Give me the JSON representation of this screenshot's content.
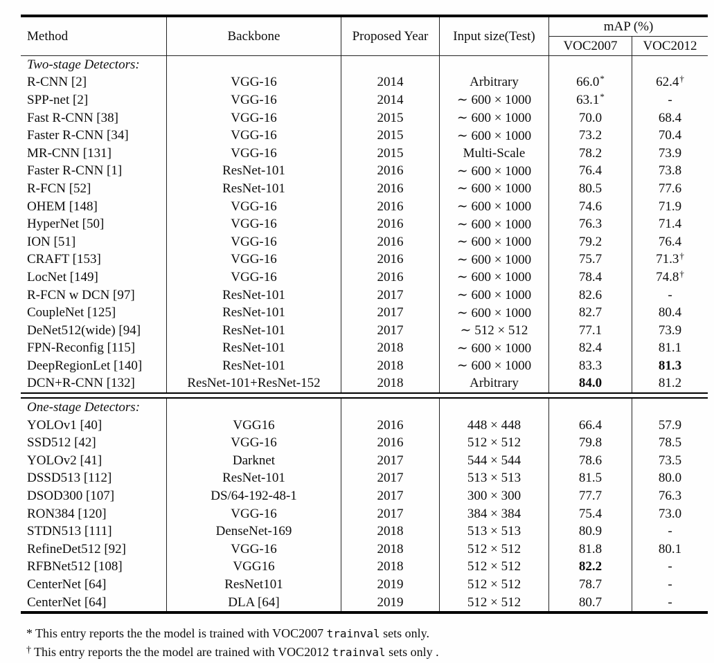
{
  "colors": {
    "text": "#0d0d0d",
    "rule": "#222222",
    "thick_rule": "#000000",
    "background": "#fefefe"
  },
  "table": {
    "headers": {
      "method": "Method",
      "backbone": "Backbone",
      "year": "Proposed Year",
      "input": "Input size(Test)",
      "map": "mAP (%)",
      "voc2007": "VOC2007",
      "voc2012": "VOC2012"
    },
    "sections": [
      {
        "label": "Two-stage Detectors:",
        "rows": [
          {
            "method": "R-CNN [2]",
            "backbone": "VGG-16",
            "year": "2014",
            "input": "Arbitrary",
            "voc2007": {
              "t": "66.0",
              "sup": "*"
            },
            "voc2012": {
              "t": "62.4",
              "sup": "†"
            }
          },
          {
            "method": "SPP-net [2]",
            "backbone": "VGG-16",
            "year": "2014",
            "input": "∼ 600 × 1000",
            "voc2007": {
              "t": "63.1",
              "sup": "*"
            },
            "voc2012": "-"
          },
          {
            "method": "Fast R-CNN [38]",
            "backbone": "VGG-16",
            "year": "2015",
            "input": "∼ 600 × 1000",
            "voc2007": "70.0",
            "voc2012": "68.4"
          },
          {
            "method": "Faster R-CNN [34]",
            "backbone": "VGG-16",
            "year": "2015",
            "input": "∼ 600 × 1000",
            "voc2007": "73.2",
            "voc2012": "70.4"
          },
          {
            "method": "MR-CNN [131]",
            "backbone": "VGG-16",
            "year": "2015",
            "input": "Multi-Scale",
            "voc2007": "78.2",
            "voc2012": "73.9"
          },
          {
            "method": "Faster R-CNN [1]",
            "backbone": "ResNet-101",
            "year": "2016",
            "input": "∼ 600 × 1000",
            "voc2007": "76.4",
            "voc2012": "73.8"
          },
          {
            "method": "R-FCN [52]",
            "backbone": "ResNet-101",
            "year": "2016",
            "input": "∼ 600 × 1000",
            "voc2007": "80.5",
            "voc2012": "77.6"
          },
          {
            "method": "OHEM [148]",
            "backbone": "VGG-16",
            "year": "2016",
            "input": "∼ 600 × 1000",
            "voc2007": "74.6",
            "voc2012": "71.9"
          },
          {
            "method": "HyperNet [50]",
            "backbone": "VGG-16",
            "year": "2016",
            "input": "∼ 600 × 1000",
            "voc2007": "76.3",
            "voc2012": "71.4"
          },
          {
            "method": "ION [51]",
            "backbone": "VGG-16",
            "year": "2016",
            "input": "∼ 600 × 1000",
            "voc2007": "79.2",
            "voc2012": "76.4"
          },
          {
            "method": "CRAFT [153]",
            "backbone": "VGG-16",
            "year": "2016",
            "input": "∼ 600 × 1000",
            "voc2007": "75.7",
            "voc2012": {
              "t": "71.3",
              "sup": "†"
            }
          },
          {
            "method": "LocNet [149]",
            "backbone": "VGG-16",
            "year": "2016",
            "input": "∼ 600 × 1000",
            "voc2007": "78.4",
            "voc2012": {
              "t": "74.8",
              "sup": "†"
            }
          },
          {
            "method": "R-FCN w DCN [97]",
            "backbone": "ResNet-101",
            "year": "2017",
            "input": "∼ 600 × 1000",
            "voc2007": "82.6",
            "voc2012": "-"
          },
          {
            "method": "CoupleNet [125]",
            "backbone": "ResNet-101",
            "year": "2017",
            "input": "∼ 600 × 1000",
            "voc2007": "82.7",
            "voc2012": "80.4"
          },
          {
            "method": "DeNet512(wide) [94]",
            "backbone": "ResNet-101",
            "year": "2017",
            "input": "∼ 512 × 512",
            "voc2007": "77.1",
            "voc2012": "73.9"
          },
          {
            "method": "FPN-Reconfig [115]",
            "backbone": "ResNet-101",
            "year": "2018",
            "input": "∼ 600 × 1000",
            "voc2007": "82.4",
            "voc2012": "81.1"
          },
          {
            "method": "DeepRegionLet [140]",
            "backbone": "ResNet-101",
            "year": "2018",
            "input": "∼ 600 × 1000",
            "voc2007": "83.3",
            "voc2012": {
              "t": "81.3",
              "bold": true
            }
          },
          {
            "method": "DCN+R-CNN [132]",
            "backbone": "ResNet-101+ResNet-152",
            "year": "2018",
            "input": "Arbitrary",
            "voc2007": {
              "t": "84.0",
              "bold": true
            },
            "voc2012": "81.2"
          }
        ]
      },
      {
        "label": "One-stage Detectors:",
        "rows": [
          {
            "method": "YOLOv1 [40]",
            "backbone": "VGG16",
            "year": "2016",
            "input": "448 × 448",
            "voc2007": "66.4",
            "voc2012": "57.9"
          },
          {
            "method": "SSD512 [42]",
            "backbone": "VGG-16",
            "year": "2016",
            "input": "512 × 512",
            "voc2007": "79.8",
            "voc2012": "78.5"
          },
          {
            "method": "YOLOv2 [41]",
            "backbone": "Darknet",
            "year": "2017",
            "input": "544 × 544",
            "voc2007": "78.6",
            "voc2012": "73.5"
          },
          {
            "method": "DSSD513 [112]",
            "backbone": "ResNet-101",
            "year": "2017",
            "input": "513 × 513",
            "voc2007": "81.5",
            "voc2012": "80.0"
          },
          {
            "method": "DSOD300 [107]",
            "backbone": "DS/64-192-48-1",
            "year": "2017",
            "input": "300 × 300",
            "voc2007": "77.7",
            "voc2012": "76.3"
          },
          {
            "method": "RON384 [120]",
            "backbone": "VGG-16",
            "year": "2017",
            "input": "384 × 384",
            "voc2007": "75.4",
            "voc2012": "73.0"
          },
          {
            "method": "STDN513 [111]",
            "backbone": "DenseNet-169",
            "year": "2018",
            "input": "513 × 513",
            "voc2007": "80.9",
            "voc2012": "-"
          },
          {
            "method": "RefineDet512 [92]",
            "backbone": "VGG-16",
            "year": "2018",
            "input": "512 × 512",
            "voc2007": "81.8",
            "voc2012": "80.1"
          },
          {
            "method": "RFBNet512 [108]",
            "backbone": "VGG16",
            "year": "2018",
            "input": "512 × 512",
            "voc2007": {
              "t": "82.2",
              "bold": true
            },
            "voc2012": "-"
          },
          {
            "method": "CenterNet [64]",
            "backbone": "ResNet101",
            "year": "2019",
            "input": "512 × 512",
            "voc2007": "78.7",
            "voc2012": "-"
          },
          {
            "method": "CenterNet [64]",
            "backbone": "DLA [64]",
            "year": "2019",
            "input": "512 × 512",
            "voc2007": "80.7",
            "voc2012": "-"
          }
        ]
      }
    ]
  },
  "footnotes": [
    {
      "marker": "*",
      "sup": false,
      "text_before": "This entry reports the the model is trained with VOC2007 ",
      "code": "trainval",
      "text_after": " sets only."
    },
    {
      "marker": "†",
      "sup": true,
      "text_before": "This entry reports the the model are trained with VOC2012 ",
      "code": "trainval",
      "text_after": " sets only ."
    }
  ]
}
